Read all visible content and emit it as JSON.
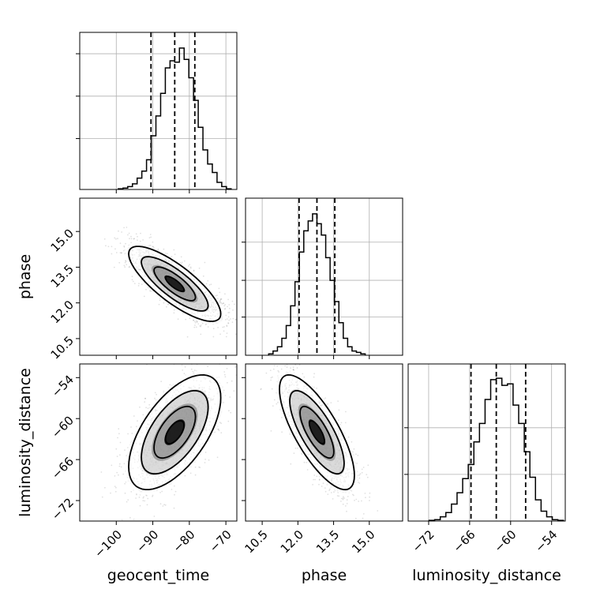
{
  "chart_data": {
    "type": "corner",
    "parameters": [
      "geocent_time",
      "phase",
      "luminosity_distance"
    ],
    "ranges": {
      "geocent_time": [
        -110,
        -67
      ],
      "phase": [
        9.8,
        16.4
      ],
      "luminosity_distance": [
        -75,
        -52
      ]
    },
    "ticks": {
      "geocent_time": [
        -100,
        -90,
        -80,
        -70
      ],
      "phase": [
        10.5,
        12.0,
        13.5,
        15.0
      ],
      "luminosity_distance": [
        -72,
        -66,
        -60,
        -54
      ]
    },
    "tick_labels": {
      "geocent_time": [
        "−100",
        "−90",
        "−80",
        "−70"
      ],
      "phase": [
        "10.5",
        "12.0",
        "13.5",
        "15.0"
      ],
      "luminosity_distance": [
        "−72",
        "−66",
        "−60",
        "−54"
      ]
    },
    "hist_ticks": {
      "geocent_time": [
        0.36,
        0.66,
        0.96
      ],
      "phase": [
        0.27,
        0.53,
        0.8
      ],
      "luminosity_distance": [
        0.33,
        0.66
      ]
    },
    "histograms": {
      "geocent_time": [
        0.005,
        0.01,
        0.02,
        0.04,
        0.08,
        0.13,
        0.21,
        0.38,
        0.52,
        0.68,
        0.86,
        0.91,
        0.9,
        1.0,
        0.92,
        0.79,
        0.63,
        0.44,
        0.28,
        0.18,
        0.12,
        0.05,
        0.02,
        0.005
      ],
      "phase": [
        0.01,
        0.03,
        0.06,
        0.12,
        0.21,
        0.35,
        0.52,
        0.73,
        0.88,
        0.95,
        1.0,
        0.93,
        0.85,
        0.69,
        0.53,
        0.38,
        0.23,
        0.12,
        0.06,
        0.03,
        0.02,
        0.01
      ],
      "luminosity_distance": [
        0.005,
        0.01,
        0.03,
        0.06,
        0.12,
        0.2,
        0.3,
        0.4,
        0.56,
        0.69,
        0.86,
        1.0,
        1.01,
        0.96,
        0.97,
        0.82,
        0.69,
        0.49,
        0.31,
        0.15,
        0.07,
        0.03,
        0.01,
        0.005
      ]
    },
    "quantiles": {
      "geocent_time": [
        -90.5,
        -84.0,
        -78.5
      ],
      "phase": [
        12.05,
        12.8,
        13.55
      ],
      "luminosity_distance": [
        -65.8,
        -62.1,
        -57.8
      ]
    },
    "correlations": {
      "phase_vs_geocent_time": -0.8,
      "luminosity_distance_vs_geocent_time": 0.6,
      "luminosity_distance_vs_phase": -0.75
    },
    "means": {
      "geocent_time": -84,
      "phase": 12.8,
      "luminosity_distance": -62
    },
    "grid": true,
    "quantile_style": "dashed",
    "color": "#000000"
  }
}
